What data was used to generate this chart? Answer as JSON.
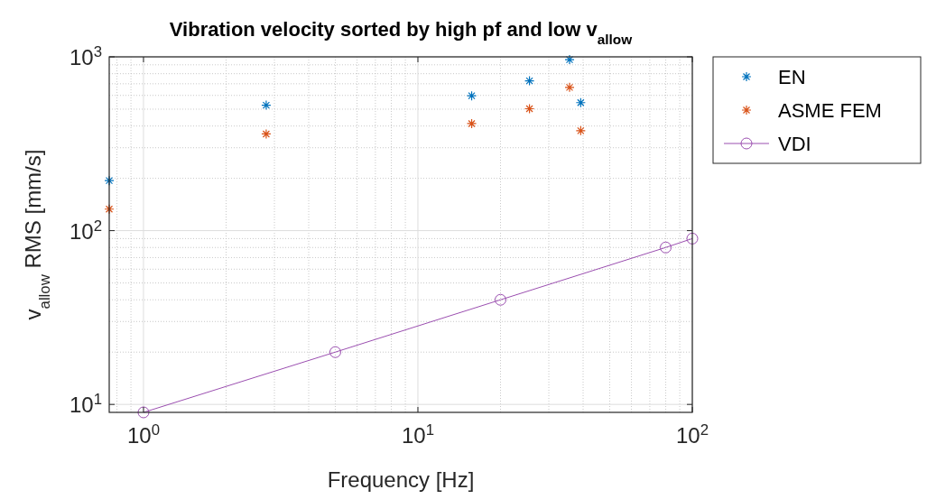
{
  "chart_data": {
    "type": "scatter",
    "title": "Vibration velocity sorted by high pf and low v$_{allow}$",
    "xlabel": "Frequency [Hz]",
    "ylabel": "v$_{allow}$ RMS [mm/s]",
    "log": "xy",
    "grid": true,
    "legend": "top right",
    "xlim": [
      0.75,
      100
    ],
    "ylim": [
      9,
      1000
    ],
    "xticks": [
      {
        "value": 1,
        "label": "10$^{0}$"
      },
      {
        "value": 10,
        "label": "10$^{1}$"
      },
      {
        "value": 100,
        "label": "10$^{2}$"
      }
    ],
    "yticks": [
      {
        "value": 10,
        "label": "10$^{1}$"
      },
      {
        "value": 100,
        "label": "10$^{2}$"
      },
      {
        "value": 1000,
        "label": "10$^{3}$"
      }
    ],
    "series": [
      {
        "name": "EN",
        "marker": "cross",
        "color": "#0072bd",
        "x": [
          0.75,
          2.8,
          15.7,
          25.5,
          35.7,
          39.2
        ],
        "values": [
          194,
          527,
          597,
          728,
          964,
          545
        ]
      },
      {
        "name": "ASME FEM",
        "marker": "cross",
        "color": "#d95319",
        "x": [
          0.75,
          2.8,
          15.7,
          25.5,
          35.7,
          39.2
        ],
        "values": [
          133,
          360,
          413,
          503,
          667,
          376
        ]
      },
      {
        "name": "VDI",
        "type": "line",
        "marker": "circle",
        "line_style": "solid",
        "color": "#9b4fb0",
        "x": [
          1,
          5,
          20,
          80,
          100
        ],
        "values": [
          9,
          20,
          40,
          80,
          90
        ]
      }
    ]
  }
}
